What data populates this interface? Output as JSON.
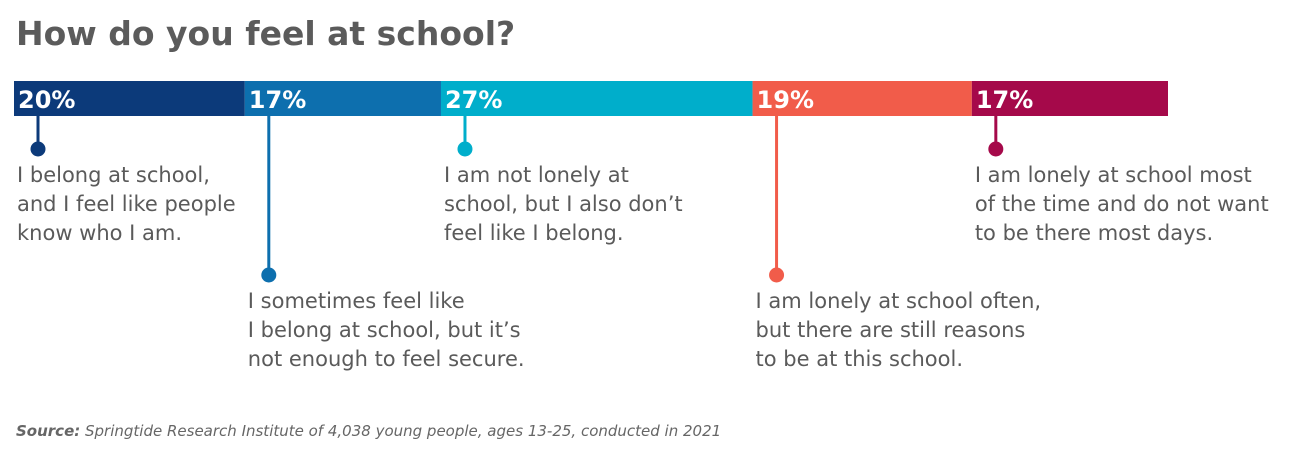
{
  "title": "How do you feel at school?",
  "source": {
    "label": "Source:",
    "text": " Springtide Research Institute of 4,038 young people, ages 13-25, conducted in 2021"
  },
  "chart_data": {
    "type": "bar",
    "orientation": "horizontal-stacked",
    "unit": "%",
    "series": [
      {
        "value": 20,
        "label": "20%",
        "color": "#0c3a7a",
        "description": [
          "I belong at school,",
          "and I feel like people",
          "know who I am."
        ]
      },
      {
        "value": 17,
        "label": "17%",
        "color": "#0d6fae",
        "description": [
          "I sometimes feel like",
          "I belong at school, but it’s",
          "not enough to feel secure."
        ]
      },
      {
        "value": 27,
        "label": "27%",
        "color": "#00aecb",
        "description": [
          "I am not lonely at",
          "school, but I also don’t",
          "feel like I belong."
        ]
      },
      {
        "value": 19,
        "label": "19%",
        "color": "#f15c4a",
        "description": [
          "I am lonely at school often,",
          "but there are still reasons",
          "to be at this school."
        ]
      },
      {
        "value": 17,
        "label": "17%",
        "color": "#a5094a",
        "description": [
          "I am lonely at school most",
          "of the time and do not want",
          "to be there most days."
        ]
      }
    ]
  }
}
